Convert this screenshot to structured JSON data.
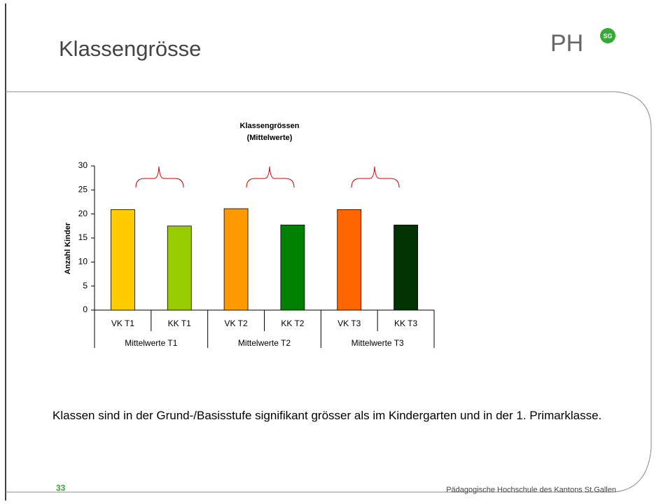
{
  "slide": {
    "title": "Klassengrösse",
    "logo": "PH",
    "logo_badge": "SG",
    "body": "Klassen sind in der Grund-/Basisstufe signifikant grösser als im Kindergarten und in der 1. Primarklasse.",
    "page_number": "33",
    "footer": "Pädagogische Hochschule des Kantons St.Gallen"
  },
  "chart_data": {
    "type": "bar",
    "title": [
      "Klassengrössen",
      "(Mittelwerte)"
    ],
    "y_label": "Anzahl Kinder",
    "categories": [
      "VK T1",
      "KK T1",
      "VK T2",
      "KK T2",
      "VK T3",
      "KK T3"
    ],
    "groups": [
      "Mittelwerte T1",
      "Mittelwerte T2",
      "Mittelwerte T3"
    ],
    "values": [
      20.9,
      17.5,
      21.1,
      17.7,
      20.9,
      17.7
    ],
    "colors": [
      "#ffcc00",
      "#99cc00",
      "#ff9900",
      "#008000",
      "#ff6600",
      "#003300"
    ],
    "ylim": [
      0,
      30
    ],
    "yticks": [
      0,
      5,
      10,
      15,
      20,
      25,
      30
    ],
    "grid": false
  }
}
